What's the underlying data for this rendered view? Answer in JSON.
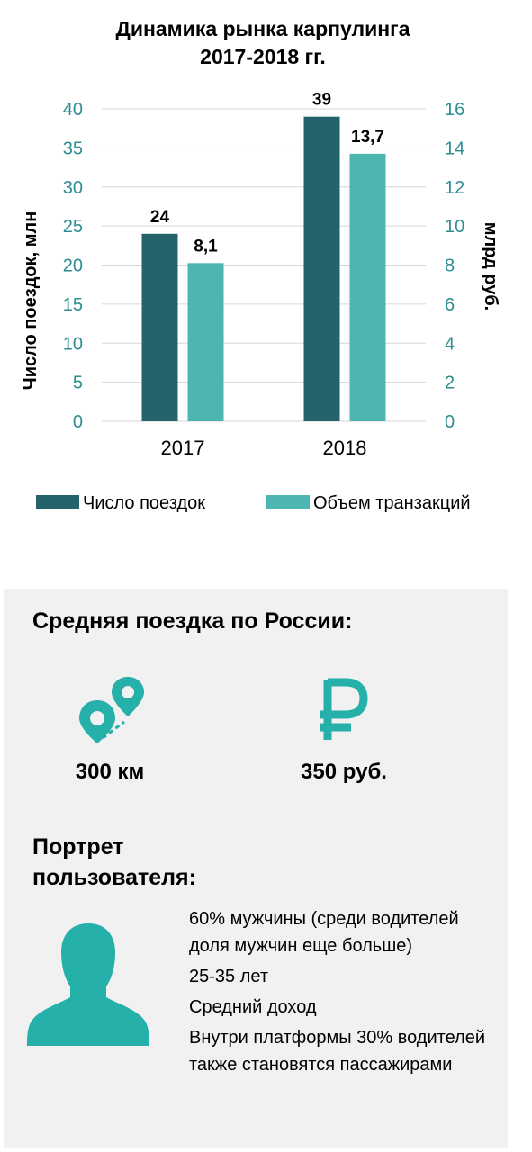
{
  "chart_data": {
    "type": "bar",
    "title": [
      "Динамика рынка карпулинга",
      "2017-2018 гг."
    ],
    "categories": [
      "2017",
      "2018"
    ],
    "series": [
      {
        "name": "Число поездок",
        "values": [
          24,
          39
        ],
        "labels": [
          "24",
          "39"
        ],
        "color": "#24636b",
        "axis": "left"
      },
      {
        "name": "Объем транзакций",
        "values": [
          8.1,
          13.7
        ],
        "labels": [
          "8,1",
          "13,7"
        ],
        "color": "#4db6b0",
        "axis": "right"
      }
    ],
    "ylabel": "Число поездок, млн",
    "y2label": "млрд руб.",
    "ylim": [
      0,
      40
    ],
    "y2lim": [
      0,
      16
    ],
    "yticks": [
      0,
      5,
      10,
      15,
      20,
      25,
      30,
      35,
      40
    ],
    "y2ticks": [
      0,
      2,
      4,
      6,
      8,
      10,
      12,
      14,
      16
    ],
    "grid": true,
    "legend": "bottom",
    "tick_color": "#2e8d92"
  },
  "trip": {
    "heading": "Средняя поездка по России:",
    "distance": "300 км",
    "price": "350 руб.",
    "accent": "#25b0aa"
  },
  "portrait": {
    "heading": "Портрет пользователя:",
    "items": [
      "60% мужчины (среди водителей доля мужчин еще больше)",
      "25-35 лет",
      "Средний доход",
      "Внутри платформы 30% водителей также становятся пассажирами"
    ]
  }
}
